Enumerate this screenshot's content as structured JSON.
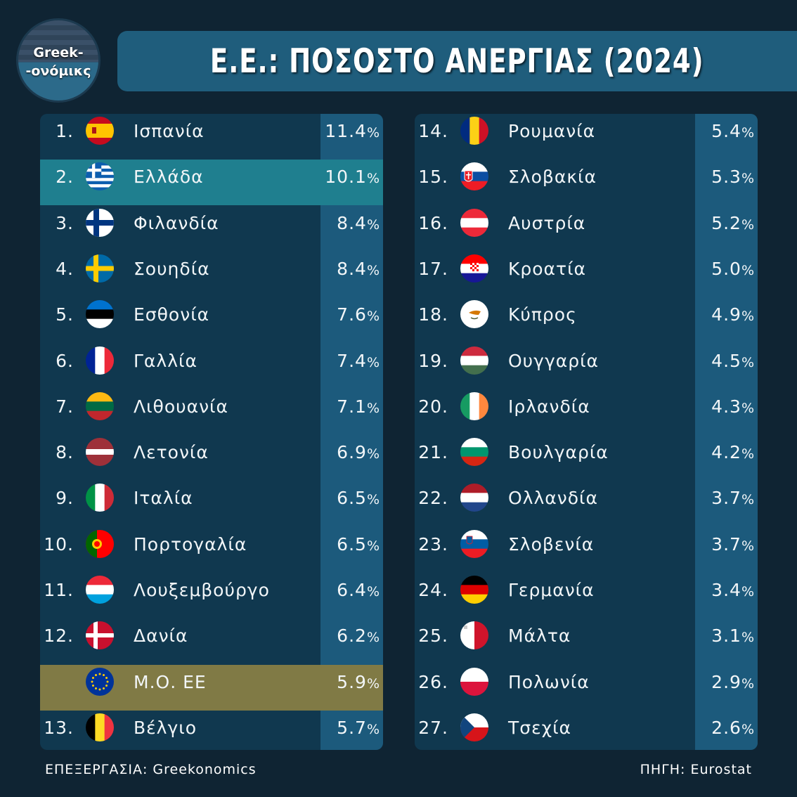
{
  "logo": {
    "line1": "Greek-",
    "line2": "-ονόμικς"
  },
  "title": "Ε.Ε.: ΠΟΣΟΣΤΟ ΑΝΕΡΓΙΑΣ (2024)",
  "footer": {
    "left": "ΕΠΕΞΕΡΓΑΣΙΑ: Greekonomics",
    "right": "ΠΗΓΗ: Eurostat"
  },
  "colors": {
    "background": "#0f2433",
    "panel": "#10384f",
    "value_column": "#1c5a7c",
    "greece_highlight": "#1f7f8f",
    "eu_highlight": "#807a45"
  },
  "chart_data": {
    "type": "table",
    "title": "Ε.Ε.: ΠΟΣΟΣΤΟ ΑΝΕΡΓΙΑΣ (2024)",
    "unit": "%",
    "columns": [
      [
        {
          "rank": "1.",
          "flag": "spain-flag",
          "country": "Ισπανία",
          "value": "11.4"
        },
        {
          "rank": "2.",
          "flag": "greece-flag",
          "country": "Ελλάδα",
          "value": "10.1",
          "highlight": "greece"
        },
        {
          "rank": "3.",
          "flag": "finland-flag",
          "country": "Φιλανδία",
          "value": "8.4"
        },
        {
          "rank": "4.",
          "flag": "sweden-flag",
          "country": "Σουηδία",
          "value": "8.4"
        },
        {
          "rank": "5.",
          "flag": "estonia-flag",
          "country": "Εσθονία",
          "value": "7.6"
        },
        {
          "rank": "6.",
          "flag": "france-flag",
          "country": "Γαλλία",
          "value": "7.4"
        },
        {
          "rank": "7.",
          "flag": "lithuania-flag",
          "country": "Λιθουανία",
          "value": "7.1"
        },
        {
          "rank": "8.",
          "flag": "latvia-flag",
          "country": "Λετονία",
          "value": "6.9"
        },
        {
          "rank": "9.",
          "flag": "italy-flag",
          "country": "Ιταλία",
          "value": "6.5"
        },
        {
          "rank": "10.",
          "flag": "portugal-flag",
          "country": "Πορτογαλία",
          "value": "6.5"
        },
        {
          "rank": "11.",
          "flag": "luxembourg-flag",
          "country": "Λουξεμβούργο",
          "value": "6.4"
        },
        {
          "rank": "12.",
          "flag": "denmark-flag",
          "country": "Δανία",
          "value": "6.2"
        },
        {
          "rank": "",
          "flag": "eu-flag",
          "country": "Μ.Ο. ΕΕ",
          "value": "5.9",
          "highlight": "eu"
        },
        {
          "rank": "13.",
          "flag": "belgium-flag",
          "country": "Βέλγιο",
          "value": "5.7"
        }
      ],
      [
        {
          "rank": "14.",
          "flag": "romania-flag",
          "country": "Ρουμανία",
          "value": "5.4"
        },
        {
          "rank": "15.",
          "flag": "slovakia-flag",
          "country": "Σλοβακία",
          "value": "5.3"
        },
        {
          "rank": "16.",
          "flag": "austria-flag",
          "country": "Αυστρία",
          "value": "5.2"
        },
        {
          "rank": "17.",
          "flag": "croatia-flag",
          "country": "Κροατία",
          "value": "5.0"
        },
        {
          "rank": "18.",
          "flag": "cyprus-flag",
          "country": "Κύπρος",
          "value": "4.9"
        },
        {
          "rank": "19.",
          "flag": "hungary-flag",
          "country": "Ουγγαρία",
          "value": "4.5"
        },
        {
          "rank": "20.",
          "flag": "ireland-flag",
          "country": "Ιρλανδία",
          "value": "4.3"
        },
        {
          "rank": "21.",
          "flag": "bulgaria-flag",
          "country": "Βουλγαρία",
          "value": "4.2"
        },
        {
          "rank": "22.",
          "flag": "netherlands-flag",
          "country": "Ολλανδία",
          "value": "3.7"
        },
        {
          "rank": "23.",
          "flag": "slovenia-flag",
          "country": "Σλοβενία",
          "value": "3.7"
        },
        {
          "rank": "24.",
          "flag": "germany-flag",
          "country": "Γερμανία",
          "value": "3.4"
        },
        {
          "rank": "25.",
          "flag": "malta-flag",
          "country": "Μάλτα",
          "value": "3.1"
        },
        {
          "rank": "26.",
          "flag": "poland-flag",
          "country": "Πολωνία",
          "value": "2.9"
        },
        {
          "rank": "27.",
          "flag": "czechia-flag",
          "country": "Τσεχία",
          "value": "2.6"
        }
      ]
    ]
  }
}
